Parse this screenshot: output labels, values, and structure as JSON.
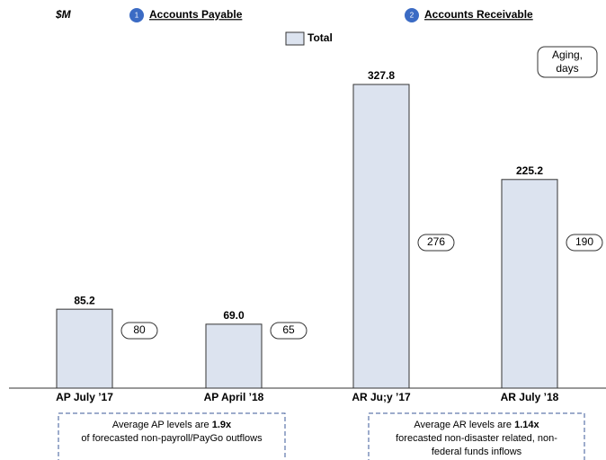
{
  "unit": "$M",
  "sections": [
    {
      "number": "1",
      "label": "Accounts Payable"
    },
    {
      "number": "2",
      "label": "Accounts Receivable"
    }
  ],
  "aging_label": [
    "Aging,",
    "days"
  ],
  "chart_data": {
    "type": "bar",
    "categories": [
      "AP July ’17",
      "AP April ’18",
      "AR Ju;y ’17",
      "AR July ’18"
    ],
    "series": [
      {
        "name": "Total",
        "color": "#dce3ef",
        "values": [
          85.2,
          69,
          327.8,
          225.2
        ],
        "value_labels": [
          "85.2",
          "69.0",
          "327.8",
          "225.2"
        ]
      }
    ],
    "aging_days": [
      80,
      65,
      276,
      190
    ]
  },
  "notes": [
    {
      "lines": [
        [
          "Average AP levels are ",
          "1.9x"
        ],
        [
          "of forecasted non-payroll/PayGo outflows"
        ]
      ]
    },
    {
      "lines": [
        [
          "Average AR levels are ",
          "1.14x"
        ],
        [
          "forecasted non-disaster related, non-"
        ],
        [
          "federal funds inflows"
        ]
      ]
    }
  ]
}
